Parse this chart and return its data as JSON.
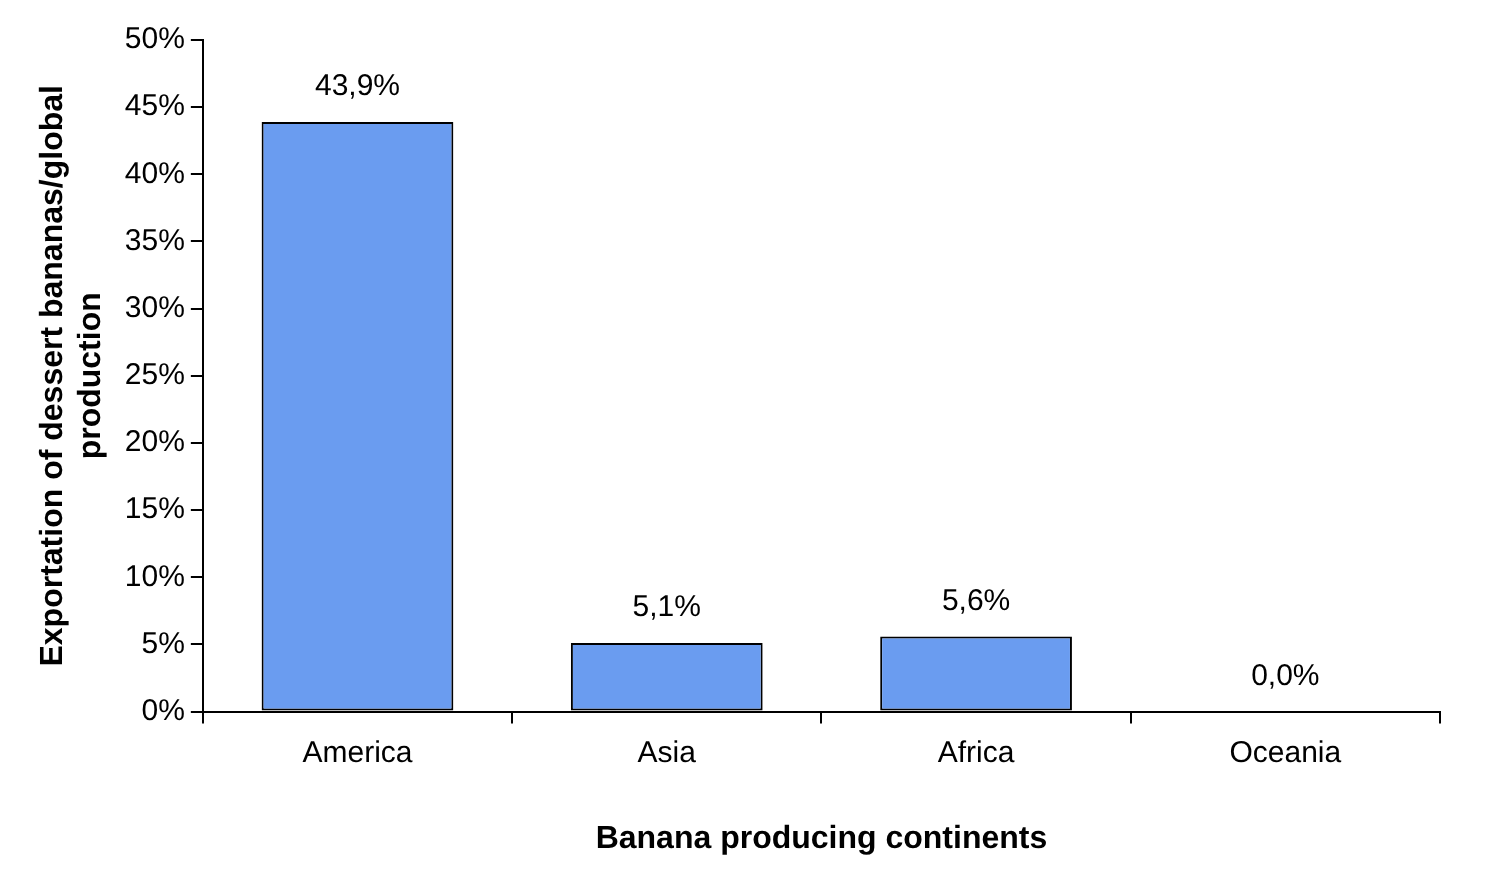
{
  "chart_data": {
    "type": "bar",
    "xlabel": "Banana producing continents",
    "ylabel": "Exportation of dessert bananas/global production",
    "categories": [
      "America",
      "Asia",
      "Africa",
      "Oceania"
    ],
    "values": [
      43.9,
      5.1,
      5.6,
      0.0
    ],
    "value_labels": [
      "43,9%",
      "5,1%",
      "5,6%",
      "0,0%"
    ],
    "color": "#6a9cf0",
    "ylim": [
      0,
      50
    ],
    "yticks": [
      {
        "value": 0,
        "label": "0%"
      },
      {
        "value": 5,
        "label": "5%"
      },
      {
        "value": 10,
        "label": "10%"
      },
      {
        "value": 15,
        "label": "15%"
      },
      {
        "value": 20,
        "label": "20%"
      },
      {
        "value": 25,
        "label": "25%"
      },
      {
        "value": 30,
        "label": "30%"
      },
      {
        "value": 35,
        "label": "35%"
      },
      {
        "value": 40,
        "label": "40%"
      },
      {
        "value": 45,
        "label": "45%"
      },
      {
        "value": 50,
        "label": "50%"
      }
    ],
    "grid": false,
    "legend": false
  }
}
